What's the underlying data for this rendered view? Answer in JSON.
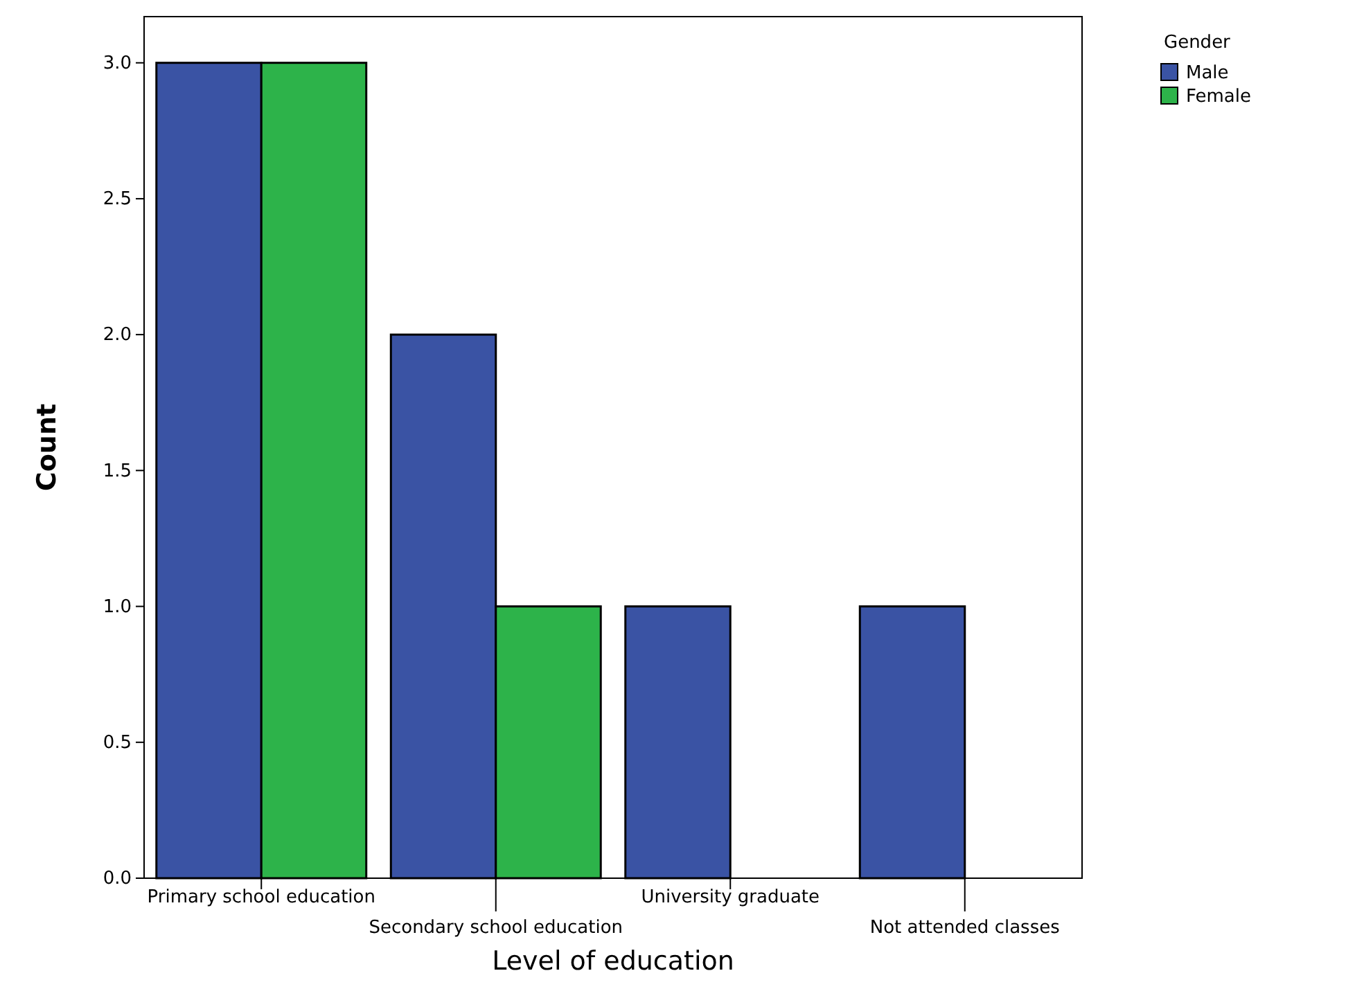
{
  "chart_data": {
    "type": "bar",
    "xlabel": "Level of education",
    "ylabel": "Count",
    "legend_title": "Gender",
    "categories": [
      "Primary school education",
      "Secondary school education",
      "University graduate",
      "Not attended classes"
    ],
    "series": [
      {
        "name": "Male",
        "color": "#3a53a4",
        "values": [
          3,
          2,
          1,
          1
        ]
      },
      {
        "name": "Female",
        "color": "#2db34a",
        "values": [
          3,
          1,
          null,
          null
        ]
      }
    ],
    "ylim": [
      0,
      3.17
    ],
    "yticks": [
      {
        "value": 0,
        "label": "0.0"
      },
      {
        "value": 0.5,
        "label": "0.5"
      },
      {
        "value": 1,
        "label": "1.0"
      },
      {
        "value": 1.5,
        "label": "1.5"
      },
      {
        "value": 2,
        "label": "2.0"
      },
      {
        "value": 2.5,
        "label": "2.5"
      },
      {
        "value": 3,
        "label": "3.0"
      }
    ],
    "grid": false,
    "legend": "top right"
  }
}
